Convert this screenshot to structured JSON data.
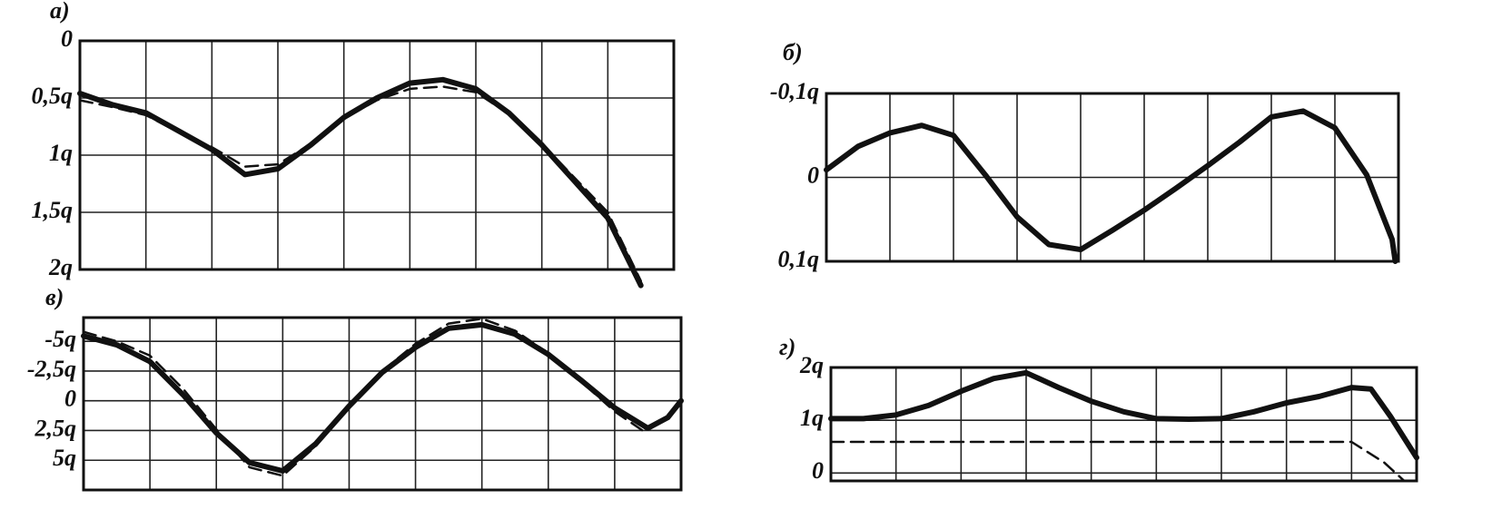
{
  "chart_data": [
    {
      "type": "line",
      "label": "а)",
      "xlim": [
        0,
        9
      ],
      "xticks": [
        1,
        2,
        3,
        4,
        5,
        6,
        7,
        8
      ],
      "ylim": [
        2,
        0
      ],
      "yticks": [
        0,
        {
          "value": 0.5,
          "label": "0,5q"
        },
        {
          "value": 1,
          "label": "1q"
        },
        {
          "value": 1.5,
          "label": "1,5q"
        },
        {
          "value": 2,
          "label": "2q"
        }
      ],
      "grid": true,
      "series": [
        {
          "style": "solid",
          "color": "#111",
          "x": [
            0,
            0.5,
            1,
            1.5,
            2,
            2.5,
            3,
            3.5,
            4,
            4.5,
            5,
            5.5,
            6,
            6.5,
            7,
            7.5,
            8,
            8.5
          ],
          "values": [
            0.46,
            0.56,
            0.63,
            0.79,
            0.95,
            1.17,
            1.12,
            0.91,
            0.67,
            0.5,
            0.37,
            0.34,
            0.42,
            0.63,
            0.91,
            1.23,
            1.55,
            2.14
          ]
        },
        {
          "style": "dashed",
          "color": "#111",
          "x": [
            0,
            0.5,
            1,
            1.5,
            2,
            2.5,
            3,
            3.5,
            4,
            4.5,
            5,
            5.5,
            6,
            6.5,
            7,
            7.5,
            8,
            8.5
          ],
          "values": [
            0.52,
            0.58,
            0.65,
            0.8,
            0.93,
            1.1,
            1.08,
            0.9,
            0.68,
            0.52,
            0.42,
            0.4,
            0.45,
            0.64,
            0.9,
            1.2,
            1.5,
            2.1
          ]
        }
      ]
    },
    {
      "type": "line",
      "label": "б)",
      "xlim": [
        0,
        9
      ],
      "xticks": [
        1,
        2,
        3,
        4,
        5,
        6,
        7,
        8
      ],
      "ylim": [
        0.1,
        -0.1
      ],
      "yticks": [
        {
          "value": -0.1,
          "label": "-0,1q"
        },
        0,
        {
          "value": 0.1,
          "label": "0,1q"
        }
      ],
      "grid": true,
      "series": [
        {
          "style": "solid",
          "color": "#111",
          "x": [
            0,
            0.5,
            1,
            1.5,
            2,
            2.5,
            3,
            3.5,
            4,
            4.5,
            5,
            5.5,
            6,
            6.5,
            7,
            7.5,
            8,
            8.5,
            8.9,
            8.95
          ],
          "values": [
            -0.009,
            -0.037,
            -0.053,
            -0.062,
            -0.05,
            -0.003,
            0.047,
            0.08,
            0.086,
            0.063,
            0.039,
            0.013,
            -0.014,
            -0.042,
            -0.072,
            -0.079,
            -0.059,
            -0.003,
            0.074,
            0.1
          ]
        }
      ]
    },
    {
      "type": "line",
      "label": "в)",
      "xlim": [
        0,
        9
      ],
      "xticks": [
        1,
        2,
        3,
        4,
        5,
        6,
        7,
        8
      ],
      "ylim": [
        7.5,
        -7
      ],
      "yticks": [
        {
          "value": -5,
          "label": "-5q"
        },
        {
          "value": -2.5,
          "label": "-2,5q"
        },
        0,
        {
          "value": 2.5,
          "label": "2,5q"
        },
        {
          "value": 5,
          "label": "5q"
        }
      ],
      "grid": true,
      "series": [
        {
          "style": "solid",
          "color": "#111",
          "x": [
            0,
            0.5,
            1,
            1.5,
            2,
            2.5,
            3,
            3.5,
            4,
            4.5,
            5,
            5.5,
            6,
            6.5,
            7,
            7.5,
            8,
            8.5,
            8.8,
            9
          ],
          "values": [
            -5.45,
            -4.7,
            -3.3,
            -0.5,
            2.7,
            5.2,
            5.9,
            3.6,
            0.45,
            -2.4,
            -4.5,
            -6.1,
            -6.4,
            -5.6,
            -3.9,
            -1.7,
            0.6,
            2.3,
            1.4,
            0
          ]
        },
        {
          "style": "dashed",
          "color": "#111",
          "x": [
            0,
            0.5,
            1,
            1.5,
            2,
            2.5,
            3,
            3.5,
            4,
            4.5,
            5,
            5.5,
            6,
            6.5,
            7,
            7.5,
            8,
            8.5
          ],
          "values": [
            -5.8,
            -5,
            -3.8,
            -1,
            2.4,
            5.6,
            6.3,
            3.8,
            0.5,
            -2.5,
            -4.8,
            -6.5,
            -6.9,
            -5.9,
            -4,
            -1.6,
            0.9,
            2.8
          ]
        }
      ]
    },
    {
      "type": "line",
      "label": "г)",
      "xlim": [
        0,
        9
      ],
      "xticks": [
        1,
        2,
        3,
        4,
        5,
        6,
        7,
        8
      ],
      "ylim": [
        -0.15,
        2
      ],
      "yticks": [
        0,
        {
          "value": 1,
          "label": "1q"
        },
        {
          "value": 2,
          "label": "2q"
        }
      ],
      "grid": true,
      "series": [
        {
          "style": "solid",
          "color": "#111",
          "x": [
            0,
            0.5,
            1,
            1.5,
            2,
            2.5,
            3,
            3.5,
            4,
            4.5,
            5,
            5.5,
            6,
            6.5,
            7,
            7.5,
            8,
            8.3,
            8.6,
            9
          ],
          "values": [
            1.03,
            1.03,
            1.1,
            1.28,
            1.55,
            1.79,
            1.9,
            1.62,
            1.36,
            1.16,
            1.03,
            1.02,
            1.03,
            1.16,
            1.33,
            1.45,
            1.62,
            1.59,
            1.07,
            0.29
          ]
        },
        {
          "style": "dashed",
          "color": "#111",
          "x": [
            0,
            2,
            4,
            6,
            8,
            8.5,
            8.8
          ],
          "values": [
            0.59,
            0.59,
            0.59,
            0.59,
            0.59,
            0.2,
            -0.14
          ]
        }
      ]
    }
  ]
}
